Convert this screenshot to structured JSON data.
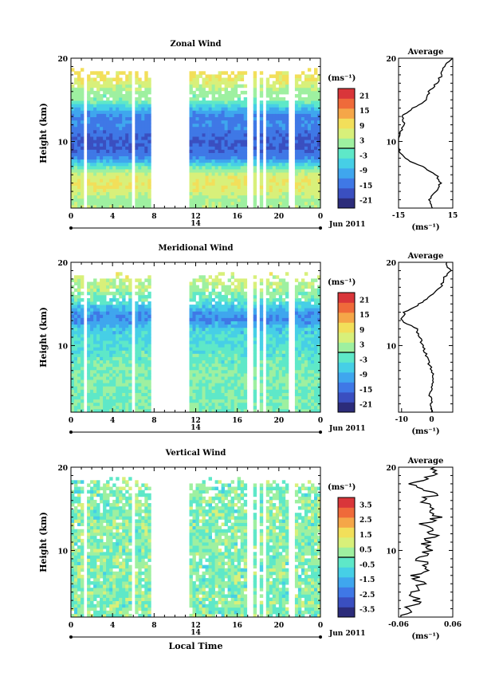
{
  "figure": {
    "date_label": "Jun 2011",
    "day_label": "14",
    "xlabel": "Local Time",
    "ylabel": "Height (km)",
    "avg_title": "Average",
    "unit_label": "(ms⁻¹)",
    "x_ticks": [
      "0",
      "4",
      "8",
      "12",
      "16",
      "20",
      "0"
    ],
    "y_ticks": [
      "20",
      "10"
    ]
  },
  "colors": {
    "colormap": [
      "#2c2c7a",
      "#3a4fc0",
      "#3f78e6",
      "#3fa6ee",
      "#46cfe6",
      "#5ee8c8",
      "#9ef0a0",
      "#d8f07a",
      "#f2df5a",
      "#f5a648",
      "#ef6a3a",
      "#d9363a"
    ]
  },
  "chart_data": [
    {
      "type": "heatmap",
      "name": "zonal",
      "title": "Zonal Wind",
      "xlabel": "",
      "ylabel": "Height (km)",
      "xlim": [
        0,
        24
      ],
      "ylim": [
        2,
        20
      ],
      "colorbar": {
        "label": "(ms⁻¹)",
        "min": -24,
        "max": 24,
        "ticks": [
          "21",
          "15",
          "9",
          "3",
          "-3",
          "-9",
          "-15",
          "-21"
        ]
      },
      "missing_x_ranges": [
        [
          1.1,
          1.5
        ],
        [
          5.8,
          6.1
        ],
        [
          7.8,
          11.5
        ],
        [
          17.0,
          17.4
        ],
        [
          17.8,
          18.1
        ],
        [
          18.5,
          18.9
        ],
        [
          21.0,
          21.4
        ]
      ],
      "profile": {
        "height": [
          2,
          3,
          4,
          5,
          6,
          7,
          8,
          9,
          10,
          11,
          12,
          13,
          14,
          15,
          16,
          17,
          18,
          19,
          20
        ],
        "wind": [
          3,
          2,
          6,
          8,
          6,
          -2,
          -12,
          -15,
          -16,
          -14,
          -12,
          -13,
          -7,
          1,
          2,
          6,
          9,
          10,
          15
        ]
      },
      "avg_xlim": [
        -15,
        15
      ],
      "avg_xticks": [
        "-15",
        "15"
      ]
    },
    {
      "type": "heatmap",
      "name": "meridional",
      "title": "Meridional Wind",
      "xlabel": "",
      "ylabel": "Height (km)",
      "xlim": [
        0,
        24
      ],
      "ylim": [
        2,
        20
      ],
      "colorbar": {
        "label": "(ms⁻¹)",
        "min": -24,
        "max": 24,
        "ticks": [
          "21",
          "15",
          "9",
          "3",
          "-3",
          "-9",
          "-15",
          "-21"
        ]
      },
      "missing_x_ranges": [
        [
          1.1,
          1.5
        ],
        [
          5.8,
          6.1
        ],
        [
          7.8,
          11.5
        ],
        [
          17.0,
          17.4
        ],
        [
          17.8,
          18.1
        ],
        [
          18.5,
          18.9
        ],
        [
          21.0,
          21.4
        ]
      ],
      "profile": {
        "height": [
          2,
          3,
          4,
          5,
          6,
          7,
          8,
          9,
          10,
          11,
          12,
          13,
          14,
          15,
          16,
          17,
          18,
          19,
          20
        ],
        "wind": [
          0,
          0,
          -0.5,
          0,
          0.5,
          0,
          -1,
          -2,
          -3,
          -4,
          -5,
          -10,
          -9,
          -4,
          0,
          3,
          4,
          6,
          5
        ]
      },
      "avg_xlim": [
        -11,
        7
      ],
      "avg_xticks": [
        "-10",
        "0"
      ]
    },
    {
      "type": "heatmap",
      "name": "vertical",
      "title": "Vertical Wind",
      "xlabel": "Local Time",
      "ylabel": "Height (km)",
      "xlim": [
        0,
        24
      ],
      "ylim": [
        2,
        20
      ],
      "colorbar": {
        "label": "(ms⁻¹)",
        "min": -4,
        "max": 4,
        "ticks": [
          "3.5",
          "2.5",
          "1.5",
          "0.5",
          "-0.5",
          "-1.5",
          "-2.5",
          "-3.5"
        ]
      },
      "missing_x_ranges": [
        [
          1.1,
          1.5
        ],
        [
          5.8,
          6.1
        ],
        [
          7.8,
          11.5
        ],
        [
          17.0,
          17.4
        ],
        [
          17.8,
          18.1
        ],
        [
          18.5,
          18.9
        ],
        [
          21.0,
          21.4
        ]
      ],
      "profile": {
        "height": [
          2,
          3,
          4,
          5,
          6,
          7,
          8,
          9,
          10,
          11,
          12,
          13,
          14,
          15,
          16,
          17,
          18,
          19,
          20
        ],
        "wind": [
          -0.05,
          -0.04,
          -0.02,
          -0.03,
          -0.01,
          -0.02,
          0.0,
          -0.01,
          0.01,
          0.0,
          0.02,
          -0.01,
          0.03,
          0.01,
          0.0,
          0.02,
          -0.03,
          0.01,
          0.02
        ]
      },
      "avg_xlim": [
        -0.06,
        0.06
      ],
      "avg_xticks": [
        "-0.06",
        "0.06"
      ]
    }
  ]
}
